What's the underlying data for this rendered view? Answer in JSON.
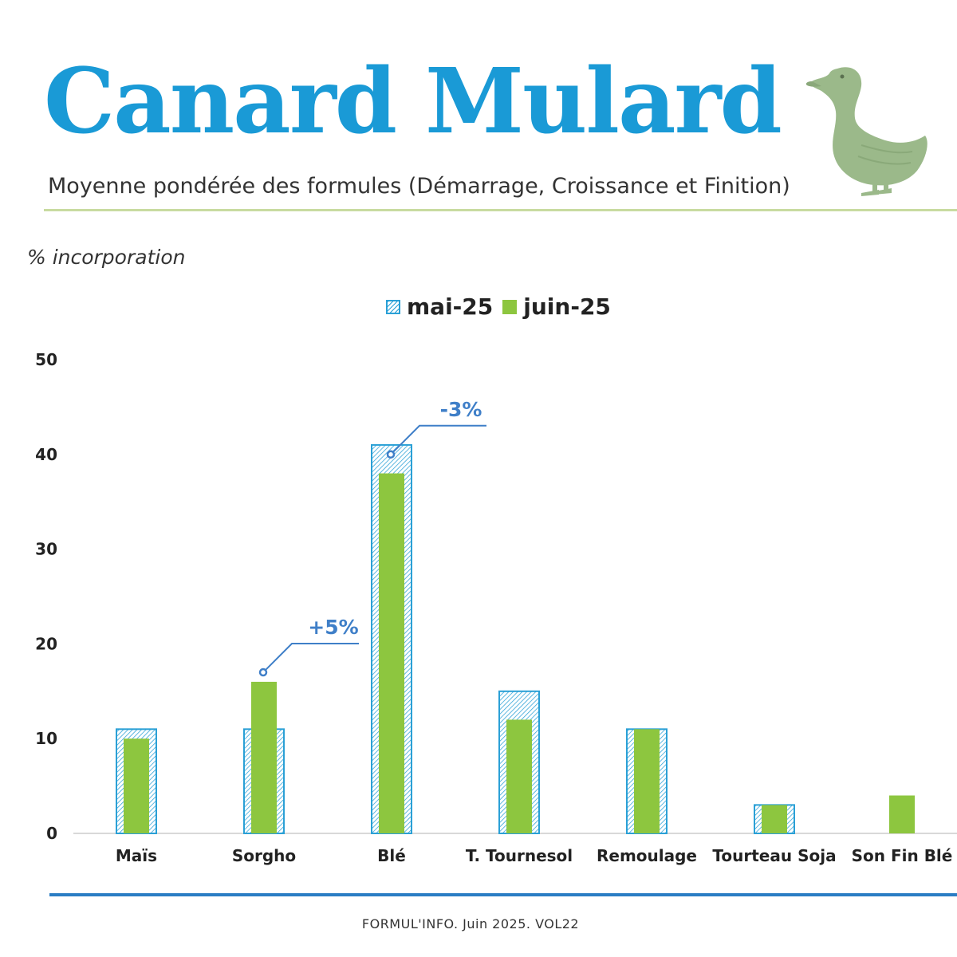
{
  "header": {
    "title": "Canard Mulard",
    "subtitle": "Moyenne pondérée des formules (Démarrage, Croissance et Finition)"
  },
  "footer": {
    "text": "FORMUL'INFO. Juin 2025. VOL22"
  },
  "colors": {
    "title": "#1a9ad6",
    "mai_series": "#2aa0d6",
    "juin_series": "#8dc63f",
    "annotation": "#3f7fc8",
    "rule": "#c8dba0",
    "footer_rule": "#2a7dc4",
    "duck": "#9bb98a"
  },
  "icons": {
    "duck": "duck-icon"
  },
  "chart_data": {
    "type": "bar",
    "ylabel": "% incorporation",
    "ylim": [
      0,
      50
    ],
    "yticks": [
      0,
      10,
      20,
      30,
      40,
      50
    ],
    "categories": [
      "Maïs",
      "Sorgho",
      "Blé",
      "T. Tournesol",
      "Remoulage",
      "Tourteau Soja",
      "Son Fin Blé"
    ],
    "series": [
      {
        "name": "mai-25",
        "style": "hatched",
        "values": [
          11,
          11,
          41,
          15,
          11,
          3,
          0
        ]
      },
      {
        "name": "juin-25",
        "style": "solid",
        "values": [
          10,
          16,
          38,
          12,
          11,
          3,
          4
        ]
      }
    ],
    "annotations": [
      {
        "category": "Sorgho",
        "text": "+5%",
        "anchor_value": 17
      },
      {
        "category": "Blé",
        "text": "-3%",
        "anchor_value": 40
      }
    ],
    "legend": "top-center",
    "grid": false
  }
}
